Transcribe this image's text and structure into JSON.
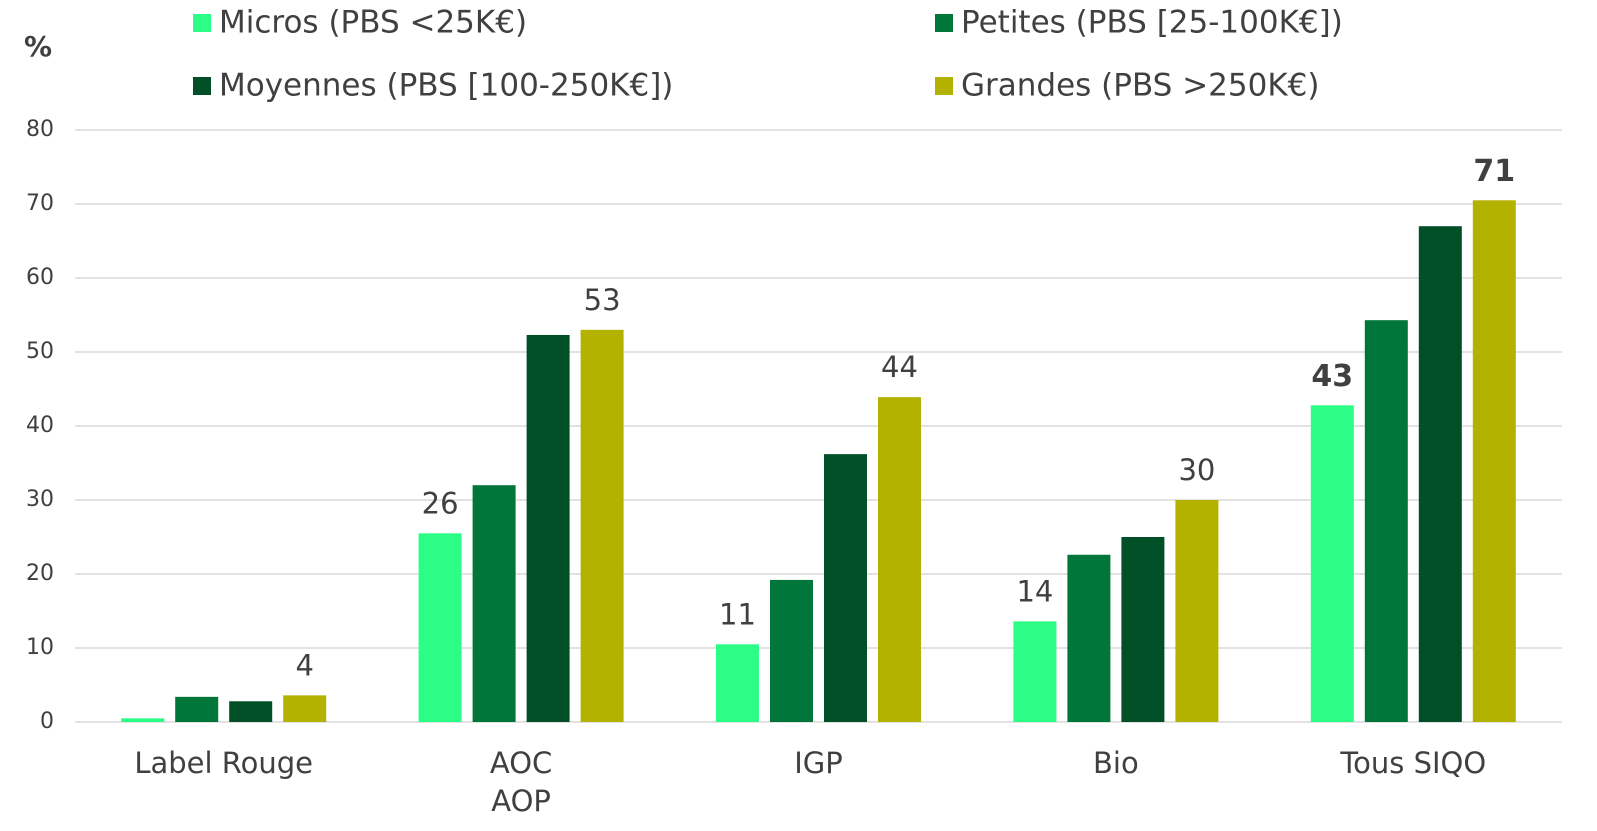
{
  "chart_data": {
    "type": "bar",
    "y_label": "%",
    "categories": [
      "Label Rouge",
      "AOC\nAOP",
      "IGP",
      "Bio",
      "Tous SIQO"
    ],
    "series": [
      {
        "name": "Micros (PBS <25K€)",
        "color": "#2bfd86",
        "values": [
          0.5,
          25.5,
          10.5,
          13.6,
          42.8
        ],
        "value_labels": [
          null,
          "26",
          "11",
          "14",
          "43"
        ]
      },
      {
        "name": "Petites (PBS [25-100K€])",
        "color": "#00763a",
        "values": [
          3.4,
          32,
          19.2,
          22.6,
          54.3
        ]
      },
      {
        "name": "Moyennes (PBS [100-250K€])",
        "color": "#004f27",
        "values": [
          2.8,
          52.3,
          36.2,
          25,
          67
        ]
      },
      {
        "name": "Grandes (PBS >250K€)",
        "color": "#b3b200",
        "values": [
          3.6,
          53,
          43.9,
          30,
          70.5
        ],
        "value_labels": [
          "4",
          "53",
          "44",
          "30",
          "71"
        ]
      }
    ],
    "ylim": [
      0,
      80
    ],
    "yticks": [
      0,
      10,
      20,
      30,
      40,
      50,
      60,
      70,
      80
    ],
    "grid": true
  }
}
